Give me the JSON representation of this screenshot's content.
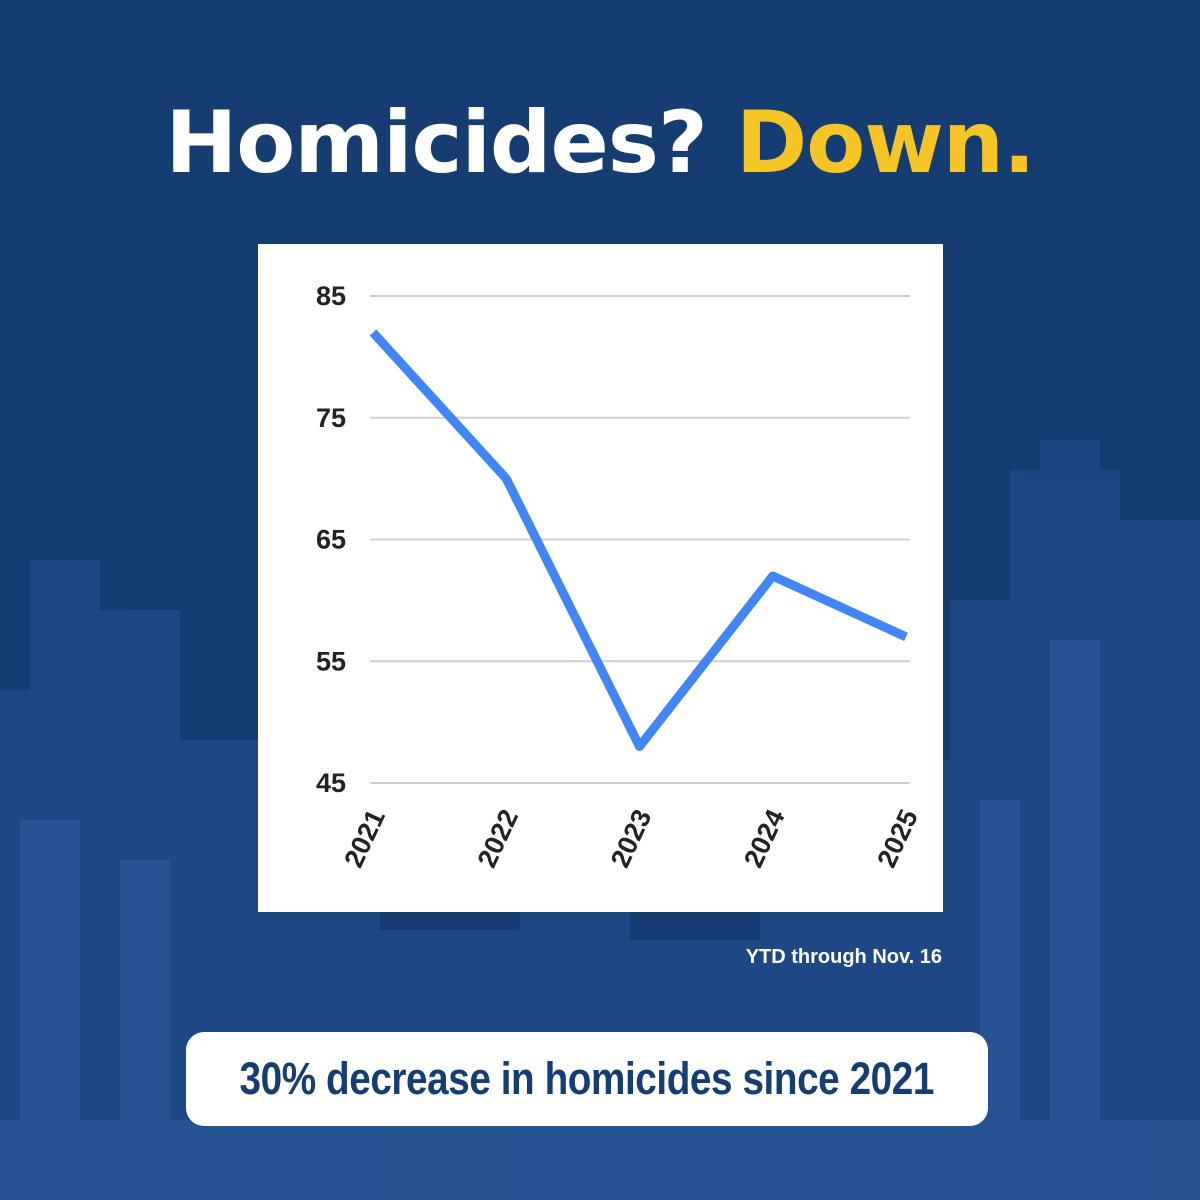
{
  "headline": {
    "part1": "Homicides?",
    "part2": "Down."
  },
  "chart_data": {
    "type": "line",
    "title": "",
    "xlabel": "",
    "ylabel": "",
    "categories": [
      "2021",
      "2022",
      "2023",
      "2024",
      "2025"
    ],
    "series": [
      {
        "values": [
          82,
          70,
          48,
          62,
          57
        ],
        "color": "#4285f4"
      }
    ],
    "yticks": [
      "45",
      "55",
      "65",
      "75",
      "85"
    ],
    "ylim": [
      45,
      85
    ],
    "grid": true,
    "legend": "none"
  },
  "footnote": "YTD through Nov. 16",
  "callout": "30% decrease in homicides since 2021",
  "colors": {
    "background": "#163d72",
    "accent": "#f5c527",
    "line": "#4285f4",
    "card": "#ffffff"
  }
}
